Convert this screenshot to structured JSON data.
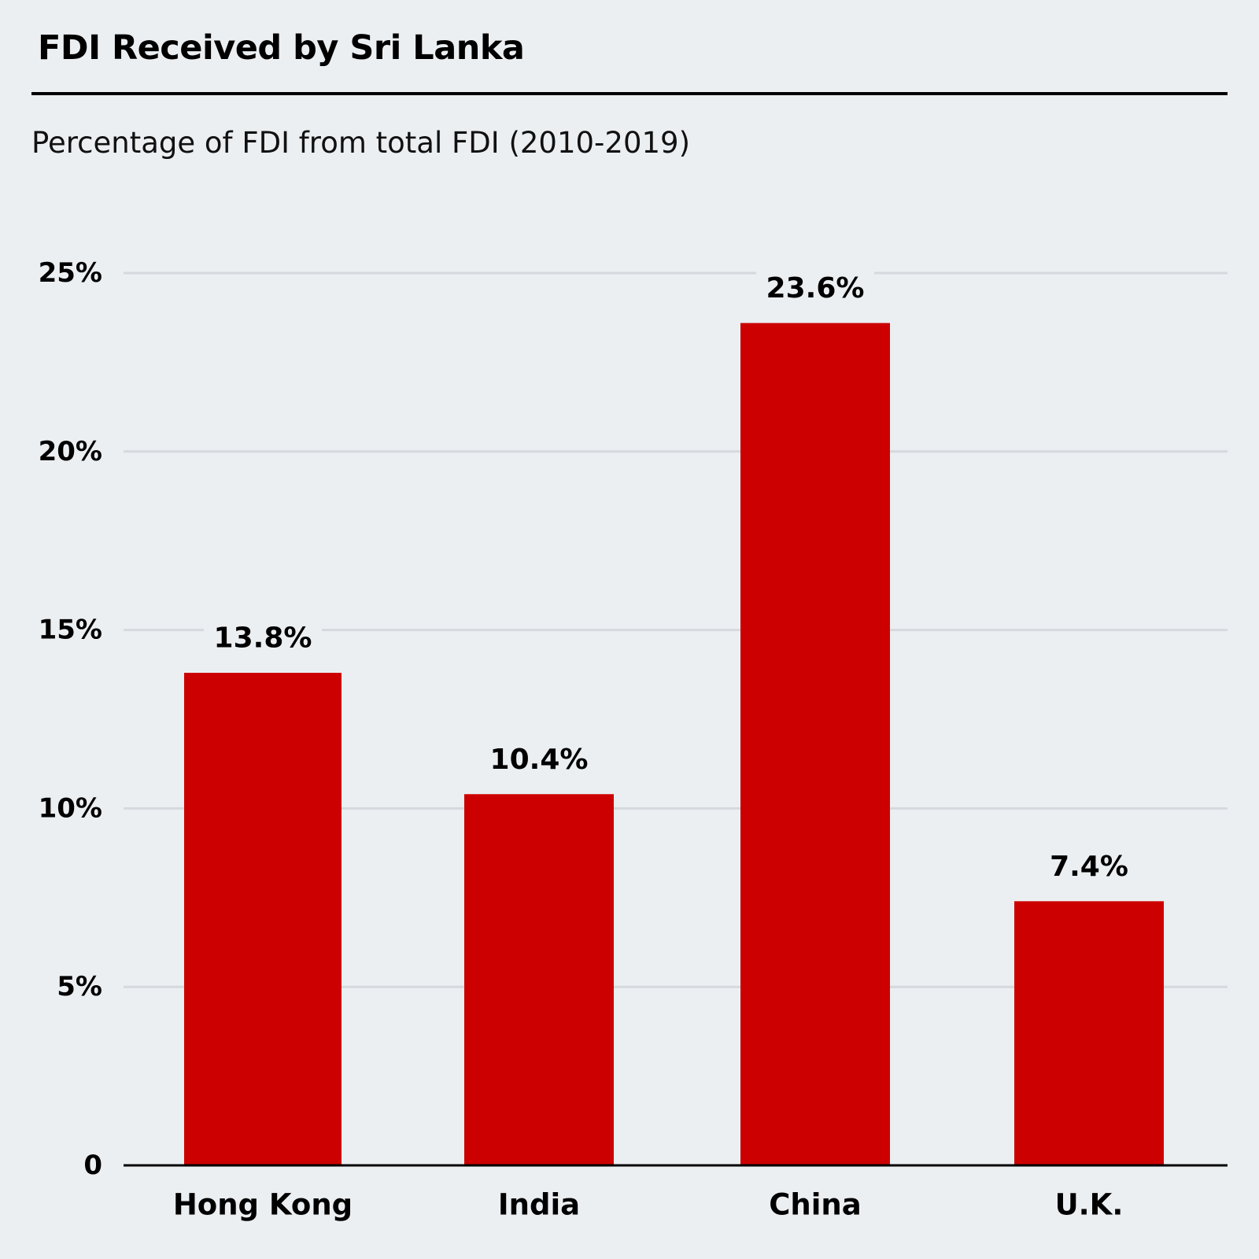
{
  "chart_data": {
    "type": "bar",
    "title": "FDI Received by Sri Lanka",
    "subtitle": "Percentage of FDI from total FDI (2010-2019)",
    "xlabel": "",
    "ylabel": "",
    "categories": [
      "Hong Kong",
      "India",
      "China",
      "U.K."
    ],
    "values": [
      13.8,
      10.4,
      23.6,
      7.4
    ],
    "data_labels": [
      "13.8%",
      "10.4%",
      "23.6%",
      "7.4%"
    ],
    "ylim": [
      0,
      25
    ],
    "yticks": [
      0,
      5,
      10,
      15,
      20,
      25
    ],
    "ytick_labels": [
      "0",
      "5%",
      "10%",
      "15%",
      "20%",
      "25%"
    ],
    "grid": true,
    "legend": "none",
    "colors": {
      "bar": "#CC0000",
      "grid": "#D5D8DC",
      "axis": "#000000",
      "background": "#ECEFF2"
    }
  }
}
